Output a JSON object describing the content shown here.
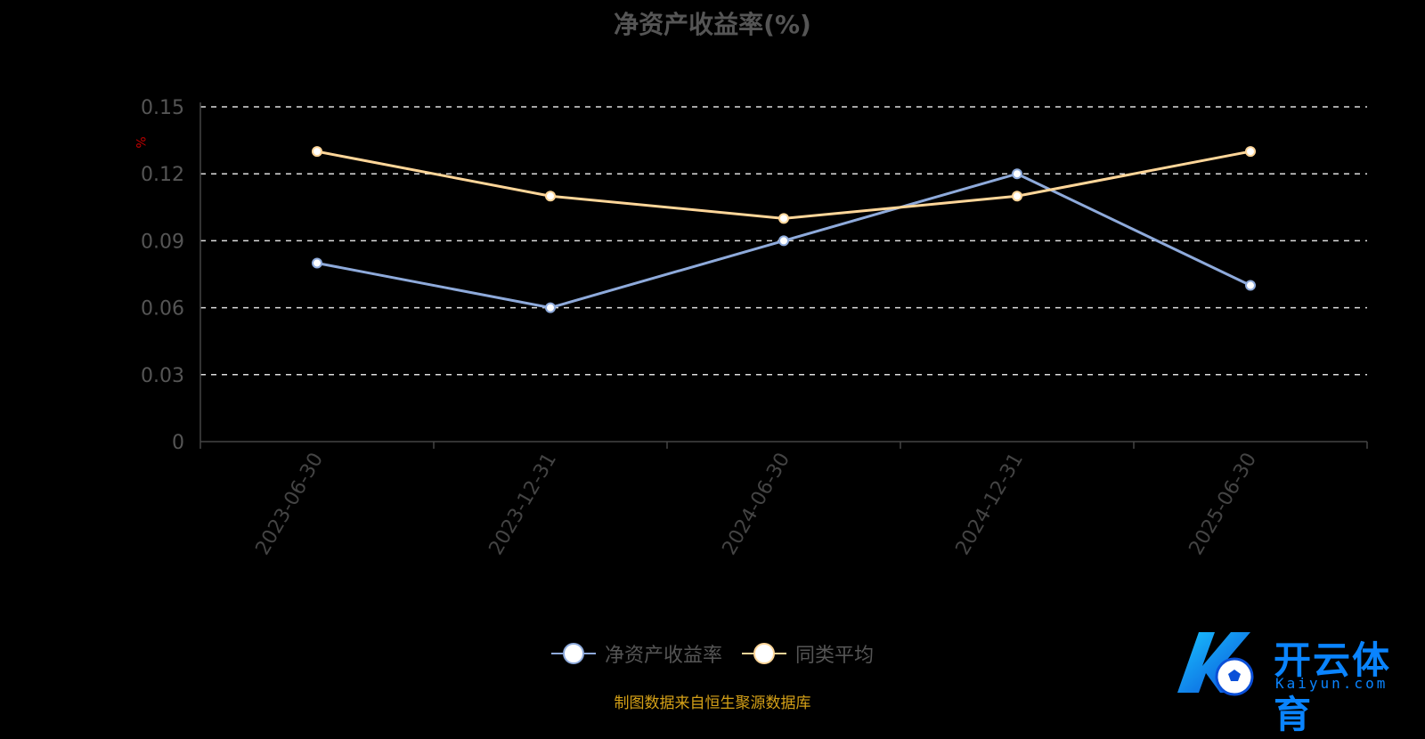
{
  "chart_data": {
    "type": "line",
    "title": "净资产收益率(%)",
    "ylabel": "%",
    "ylim": [
      0,
      0.15
    ],
    "yticks": [
      "0",
      "0.03",
      "0.06",
      "0.09",
      "0.12",
      "0.15"
    ],
    "ytick_values": [
      0,
      0.03,
      0.06,
      0.09,
      0.12,
      0.15
    ],
    "categories": [
      "2023-06-30",
      "2023-12-31",
      "2024-06-30",
      "2024-12-31",
      "2025-06-30"
    ],
    "grid": true,
    "legend_position": "bottom",
    "series": [
      {
        "name": "净资产收益率",
        "values": [
          0.08,
          0.06,
          0.09,
          0.12,
          0.07
        ],
        "color": "#8eaadb"
      },
      {
        "name": "同类平均",
        "values": [
          0.13,
          0.11,
          0.1,
          0.11,
          0.13
        ],
        "color": "#ffd699"
      }
    ]
  },
  "legend": {
    "item1": "净资产收益率",
    "item2": "同类平均"
  },
  "source": "制图数据来自恒生聚源数据库",
  "logo": {
    "brand": "开云体育",
    "domain": "Kaiyun.com",
    "icon": "soccer-ball-icon"
  }
}
